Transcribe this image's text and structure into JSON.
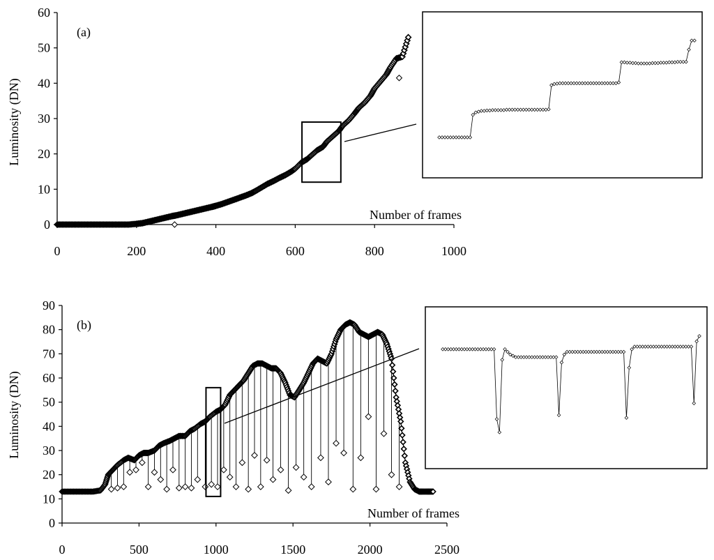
{
  "chart_data": [
    {
      "panel_label": "(a)",
      "type": "scatter",
      "ylabel": "Luminosity (DN)",
      "xlabel": "Number of  frames",
      "xlim": [
        0,
        1000
      ],
      "ylim": [
        0,
        60
      ],
      "xticks": [
        "0",
        "200",
        "400",
        "600",
        "800",
        "1000"
      ],
      "yticks": [
        "0",
        "10",
        "20",
        "30",
        "40",
        "50",
        "60"
      ],
      "grid": false,
      "marker": "open diamond",
      "series": [
        {
          "x": [
            0,
            20,
            40,
            60,
            80,
            100,
            120,
            140,
            160,
            180,
            200,
            215,
            230,
            245,
            260,
            275,
            290,
            300,
            315,
            330,
            345,
            360,
            375,
            390,
            400,
            415,
            430,
            445,
            460,
            475,
            490,
            500,
            515,
            530,
            545,
            560,
            575,
            590,
            600,
            615,
            630,
            640,
            655,
            670,
            680,
            695,
            710,
            720,
            735,
            750,
            760,
            775,
            790,
            800,
            815,
            830,
            840,
            855,
            870,
            885
          ],
          "y": [
            0,
            0,
            0,
            0,
            0,
            0,
            0,
            0,
            0,
            0,
            0.2,
            0.4,
            0.8,
            1.2,
            1.6,
            2.0,
            2.4,
            2.6,
            3.0,
            3.4,
            3.8,
            4.2,
            4.6,
            5.0,
            5.3,
            5.8,
            6.4,
            7.0,
            7.6,
            8.2,
            8.9,
            9.5,
            10.5,
            11.5,
            12.3,
            13.2,
            14.0,
            15.0,
            15.8,
            17.5,
            18.5,
            19.5,
            21.0,
            22.0,
            23.5,
            25.0,
            26.5,
            28.0,
            29.5,
            31.5,
            33.0,
            34.5,
            36.5,
            38.5,
            40.5,
            42.5,
            44.5,
            47.0,
            47.5,
            53.0
          ]
        }
      ],
      "outliers": {
        "x": [
          296,
          862
        ],
        "y": [
          0,
          41.5
        ]
      },
      "zoom_box": {
        "x": [
          617,
          715
        ],
        "y": [
          12,
          29
        ]
      },
      "inset": {
        "y": [
          27.3,
          27.3,
          27.3,
          27.3,
          27.3,
          27.3,
          27.3,
          27.3,
          27.3,
          27.3,
          27.3,
          27.3,
          33.0,
          33.6,
          33.8,
          34.0,
          34.0,
          34.1,
          34.1,
          34.2,
          34.2,
          34.2,
          34.2,
          34.2,
          34.3,
          34.3,
          34.3,
          34.3,
          34.3,
          34.3,
          34.3,
          34.3,
          34.3,
          34.3,
          34.3,
          34.3,
          34.3,
          34.3,
          34.3,
          34.4,
          40.5,
          40.8,
          40.9,
          41.0,
          41.0,
          41.0,
          41.0,
          41.0,
          41.0,
          41.0,
          41.0,
          41.0,
          41.0,
          41.0,
          41.0,
          41.0,
          41.0,
          41.0,
          41.0,
          41.0,
          41.0,
          41.0,
          41.0,
          41.0,
          41.2,
          46.3,
          46.3,
          46.2,
          46.2,
          46.1,
          46.1,
          46.0,
          46.0,
          46.0,
          46.0,
          46.0,
          46.1,
          46.1,
          46.1,
          46.2,
          46.2,
          46.2,
          46.3,
          46.3,
          46.3,
          46.4,
          46.4,
          46.4,
          46.4,
          49.5,
          51.8,
          51.8
        ]
      }
    },
    {
      "panel_label": "(b)",
      "type": "scatter",
      "ylabel": "Luminosity (DN)",
      "xlabel": "Number of frames",
      "xlim": [
        0,
        2500
      ],
      "ylim": [
        0,
        90
      ],
      "xticks": [
        "0",
        "500",
        "1000",
        "1500",
        "2000",
        "2500"
      ],
      "yticks": [
        "0",
        "10",
        "20",
        "30",
        "40",
        "50",
        "60",
        "70",
        "80",
        "90"
      ],
      "grid": false,
      "marker": "open diamond",
      "series": [
        {
          "x": [
            0,
            50,
            100,
            150,
            200,
            250,
            280,
            300,
            330,
            360,
            400,
            430,
            470,
            500,
            530,
            560,
            600,
            630,
            660,
            700,
            730,
            760,
            800,
            830,
            860,
            900,
            930,
            960,
            1000,
            1030,
            1060,
            1090,
            1120,
            1150,
            1180,
            1210,
            1240,
            1270,
            1300,
            1330,
            1360,
            1390,
            1420,
            1450,
            1480,
            1510,
            1540,
            1570,
            1600,
            1630,
            1660,
            1690,
            1720,
            1750,
            1780,
            1810,
            1840,
            1870,
            1900,
            1930,
            1960,
            1990,
            2020,
            2050,
            2080,
            2110,
            2140,
            2170,
            2200,
            2230,
            2260,
            2290,
            2320,
            2350,
            2380,
            2410
          ],
          "y": [
            13,
            13,
            13,
            13,
            13,
            13.5,
            16,
            20,
            22,
            24,
            26,
            27,
            26,
            28,
            29,
            29,
            30,
            32,
            33,
            34,
            35,
            36,
            36,
            38,
            39,
            41,
            42,
            44,
            46,
            47,
            49,
            53,
            55,
            57,
            59,
            62,
            65,
            66,
            66,
            65,
            64,
            64,
            62,
            58,
            53,
            52,
            55,
            58,
            62,
            66,
            68,
            67,
            66,
            70,
            76,
            80,
            82,
            83,
            82,
            79,
            78,
            77,
            78,
            79,
            78,
            74,
            68,
            52,
            42,
            25,
            17,
            14,
            13,
            13,
            13,
            13
          ]
        }
      ],
      "dips": {
        "x": [
          320,
          360,
          400,
          440,
          480,
          520,
          560,
          600,
          640,
          680,
          720,
          760,
          800,
          840,
          880,
          930,
          970,
          1010,
          1050,
          1090,
          1130,
          1170,
          1210,
          1250,
          1290,
          1330,
          1370,
          1420,
          1470,
          1520,
          1570,
          1620,
          1680,
          1730,
          1780,
          1830,
          1890,
          1940,
          1990,
          2040,
          2090,
          2140,
          2190
        ],
        "y": [
          14,
          14.5,
          15,
          21,
          22,
          25,
          15,
          21,
          18,
          14,
          22,
          14.5,
          15,
          14.5,
          18,
          15,
          16,
          15,
          22,
          19,
          15,
          25,
          14,
          28,
          15,
          26,
          18,
          22,
          13.5,
          23,
          19,
          15,
          27,
          17,
          33,
          29,
          14,
          27,
          44,
          14,
          37,
          20,
          15
        ]
      },
      "zoom_box": {
        "x": [
          935,
          1030
        ],
        "y": [
          11,
          56
        ]
      },
      "inset": {
        "y": [
          65,
          65,
          65,
          65,
          65,
          65,
          65,
          65,
          65,
          65,
          65,
          65,
          65,
          65,
          65,
          65,
          65,
          65,
          65,
          65,
          38.5,
          33.5,
          61,
          65,
          64,
          63,
          62.5,
          62,
          62,
          62,
          62,
          62,
          62,
          62,
          62,
          62,
          62,
          62,
          62,
          62,
          62,
          62,
          62,
          40,
          60,
          63,
          64,
          64,
          64,
          64,
          64,
          64,
          64,
          64,
          64,
          64,
          64,
          64,
          64,
          64,
          64,
          64,
          64,
          64,
          64,
          64,
          64,
          64,
          39,
          58,
          65,
          66,
          66,
          66,
          66,
          66,
          66,
          66,
          66,
          66,
          66,
          66,
          66,
          66,
          66,
          66,
          66,
          66,
          66,
          66,
          66,
          66,
          66,
          44.5,
          68,
          70
        ]
      }
    }
  ]
}
